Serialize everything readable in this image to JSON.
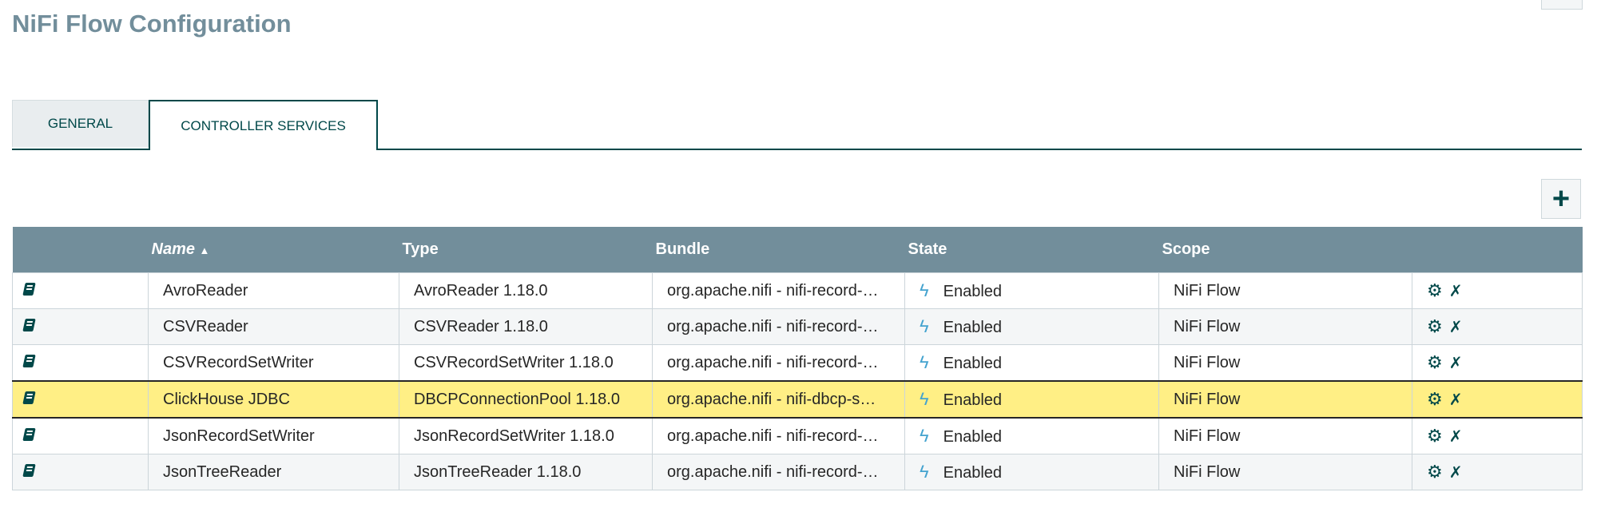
{
  "title": "NiFi Flow Configuration",
  "tabs": [
    {
      "label": "GENERAL",
      "active": false
    },
    {
      "label": "CONTROLLER SERVICES",
      "active": true
    }
  ],
  "add_button": {
    "icon": "plus-icon",
    "label": "+"
  },
  "table": {
    "columns": [
      "",
      "Name",
      "Type",
      "Bundle",
      "State",
      "Scope",
      ""
    ],
    "sort": {
      "column": "Name",
      "direction": "ascending",
      "indicator": "▲"
    },
    "rows": [
      {
        "name": "AvroReader",
        "type": "AvroReader 1.18.0",
        "bundle": "org.apache.nifi - nifi-record-…",
        "state": "Enabled",
        "scope": "NiFi Flow"
      },
      {
        "name": "CSVReader",
        "type": "CSVReader 1.18.0",
        "bundle": "org.apache.nifi - nifi-record-…",
        "state": "Enabled",
        "scope": "NiFi Flow"
      },
      {
        "name": "CSVRecordSetWriter",
        "type": "CSVRecordSetWriter 1.18.0",
        "bundle": "org.apache.nifi - nifi-record-…",
        "state": "Enabled",
        "scope": "NiFi Flow"
      },
      {
        "name": "ClickHouse JDBC",
        "type": "DBCPConnectionPool 1.18.0",
        "bundle": "org.apache.nifi - nifi-dbcp-s…",
        "state": "Enabled",
        "scope": "NiFi Flow",
        "selected": true
      },
      {
        "name": "JsonRecordSetWriter",
        "type": "JsonRecordSetWriter 1.18.0",
        "bundle": "org.apache.nifi - nifi-record-…",
        "state": "Enabled",
        "scope": "NiFi Flow"
      },
      {
        "name": "JsonTreeReader",
        "type": "JsonTreeReader 1.18.0",
        "bundle": "org.apache.nifi - nifi-record-…",
        "state": "Enabled",
        "scope": "NiFi Flow"
      }
    ]
  },
  "colors": {
    "header": "#728e9b",
    "accent": "#004849",
    "selected_row": "#ffef85",
    "enabled_icon": "#44a3cf"
  }
}
